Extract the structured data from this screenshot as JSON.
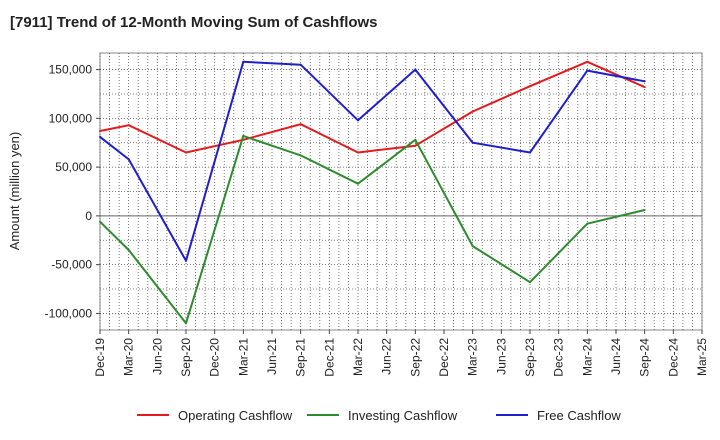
{
  "chart_data": {
    "type": "line",
    "title": "[7911]  Trend of 12-Month Moving Sum of Cashflows",
    "xlabel": "",
    "ylabel": "Amount (million yen)",
    "categories": [
      "Dec-19",
      "Mar-20",
      "Jun-20",
      "Sep-20",
      "Dec-20",
      "Mar-21",
      "Jun-21",
      "Sep-21",
      "Dec-21",
      "Mar-22",
      "Jun-22",
      "Sep-22",
      "Dec-22",
      "Mar-23",
      "Jun-23",
      "Sep-23",
      "Dec-23",
      "Mar-24",
      "Jun-24",
      "Sep-24",
      "Dec-24",
      "Mar-25"
    ],
    "ylim": [
      -117000,
      167000
    ],
    "yticks": [
      -100000,
      -50000,
      0,
      50000,
      100000,
      150000
    ],
    "ytick_labels": [
      "-100,000",
      "-50,000",
      "0",
      "50,000",
      "100,000",
      "150,000"
    ],
    "grid": true,
    "legend_position": "bottom",
    "series": [
      {
        "name": "Operating Cashflow",
        "color": "#e41a1c",
        "values": [
          87000,
          93000,
          null,
          65000,
          null,
          78000,
          null,
          94000,
          null,
          65000,
          null,
          72000,
          null,
          107000,
          null,
          133000,
          null,
          158000,
          null,
          132000,
          null,
          null
        ]
      },
      {
        "name": "Investing Cashflow",
        "color": "#2e8b2e",
        "values": [
          -6000,
          -35000,
          null,
          -110000,
          null,
          82000,
          null,
          62000,
          null,
          33000,
          null,
          78000,
          null,
          -31000,
          null,
          -68000,
          null,
          -8000,
          null,
          6000,
          null,
          null
        ]
      },
      {
        "name": "Free Cashflow",
        "color": "#1f1fcc",
        "values": [
          81000,
          58000,
          null,
          -46000,
          null,
          158000,
          null,
          155000,
          null,
          98000,
          null,
          150000,
          null,
          75000,
          null,
          65000,
          null,
          149000,
          null,
          138000,
          null,
          null
        ]
      }
    ]
  }
}
